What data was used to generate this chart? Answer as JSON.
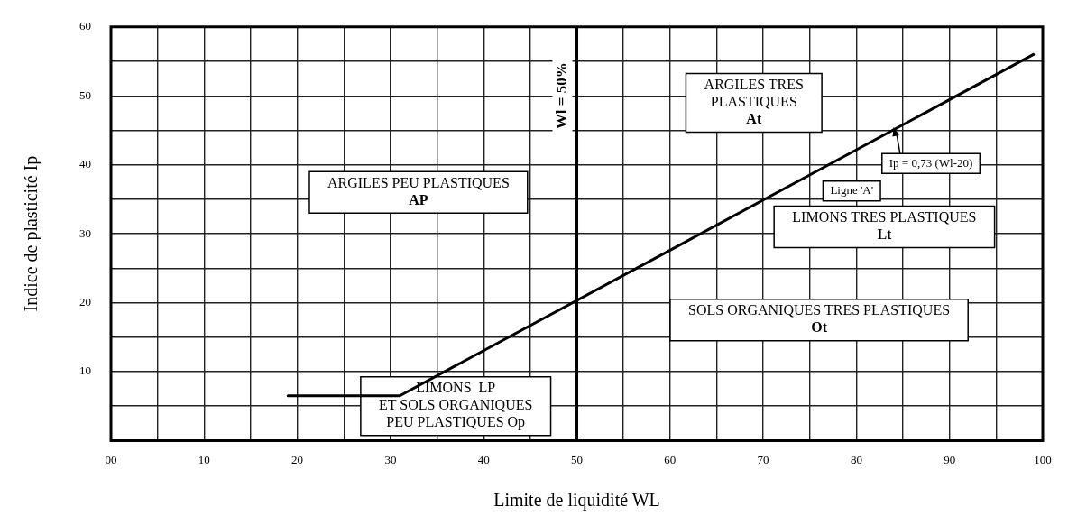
{
  "chart_data": {
    "type": "line",
    "xlabel": "Limite de liquidité WL",
    "ylabel": "Indice de plasticité Ip",
    "x": [
      19,
      31,
      99
    ],
    "series": [
      {
        "color": "#000000",
        "values": [
          6.5,
          6.5,
          56
        ]
      }
    ],
    "xlim": [
      0,
      100
    ],
    "xticks": [
      {
        "value": 0,
        "label": "00"
      },
      {
        "value": 5,
        "label": null
      },
      10,
      {
        "value": 15,
        "label": null
      },
      20,
      {
        "value": 25,
        "label": null
      },
      30,
      {
        "value": 35,
        "label": null
      },
      40,
      {
        "value": 45,
        "label": null
      },
      50,
      {
        "value": 55,
        "label": null
      },
      60,
      {
        "value": 65,
        "label": null
      },
      70,
      {
        "value": 75,
        "label": null
      },
      80,
      {
        "value": 85,
        "label": null
      },
      90,
      {
        "value": 95,
        "label": null
      },
      100
    ],
    "ylim": [
      0,
      60
    ],
    "yticks": [
      {
        "value": 5,
        "label": null
      },
      10,
      {
        "value": 15,
        "label": null
      },
      20,
      {
        "value": 25,
        "label": null
      },
      30,
      {
        "value": 35,
        "label": null
      },
      40,
      {
        "value": 45,
        "label": null
      },
      50,
      {
        "value": 55,
        "label": null
      },
      60
    ],
    "grid": true,
    "legend": false,
    "marker": "none",
    "line_style": "solid",
    "ref_lines": [
      {
        "axis": "x",
        "value": 50,
        "label": "Wl = 50%"
      }
    ],
    "annotations": [
      "ARGILES PEU PLASTIQUES\nAP",
      "ARGILES TRES\nPLASTIQUES\nAt",
      "LIMONS TRES PLASTIQUES\nLt",
      "SOLS ORGANIQUES TRES PLASTIQUES\nOt",
      "LIMONS  LP\nET SOLS ORGANIQUES\nPEU PLASTIQUES Op",
      "Ligne 'A'",
      {
        "text": "Ip = 0,73 (Wl-20)",
        "x": 84,
        "y": 45.5
      }
    ]
  }
}
